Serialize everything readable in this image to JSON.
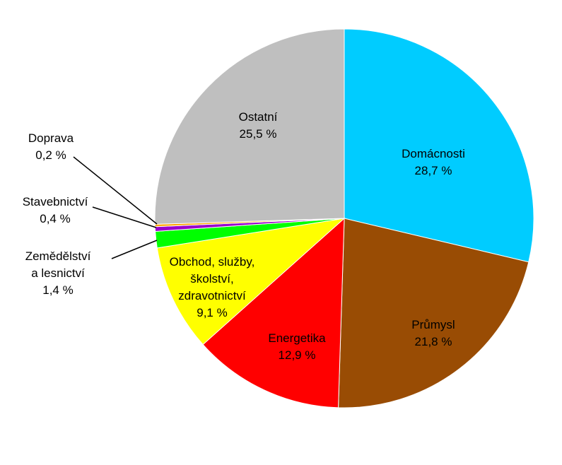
{
  "chart_data": {
    "type": "pie",
    "title": "",
    "slices": [
      {
        "name": "Domácnosti",
        "lines": [
          "Domácnosti"
        ],
        "value": 28.7,
        "value_label": "28,7 %",
        "color": "#00CCFF"
      },
      {
        "name": "Průmysl",
        "lines": [
          "Průmysl"
        ],
        "value": 21.8,
        "value_label": "21,8 %",
        "color": "#994C04"
      },
      {
        "name": "Energetika",
        "lines": [
          "Energetika"
        ],
        "value": 12.9,
        "value_label": "12,9 %",
        "color": "#FF0000"
      },
      {
        "name": "Obchod, služby, školství, zdravotnictví",
        "lines": [
          "Obchod, služby,",
          "školství,",
          "zdravotnictví"
        ],
        "value": 9.1,
        "value_label": "9,1 %",
        "color": "#FFFF00"
      },
      {
        "name": "Zemědělství a lesnictví",
        "lines": [
          "Zemědělství",
          "a lesnictví"
        ],
        "value": 1.4,
        "value_label": "1,4 %",
        "color": "#00FF00"
      },
      {
        "name": "Stavebnictví",
        "lines": [
          "Stavebnictví"
        ],
        "value": 0.4,
        "value_label": "0,4 %",
        "color": "#9900CC"
      },
      {
        "name": "Doprava",
        "lines": [
          "Doprava"
        ],
        "value": 0.2,
        "value_label": "0,2 %",
        "color": "#FFA500"
      },
      {
        "name": "Ostatní",
        "lines": [
          "Ostatní"
        ],
        "value": 25.5,
        "value_label": "25,5 %",
        "color": "#BFBFBF"
      }
    ]
  }
}
